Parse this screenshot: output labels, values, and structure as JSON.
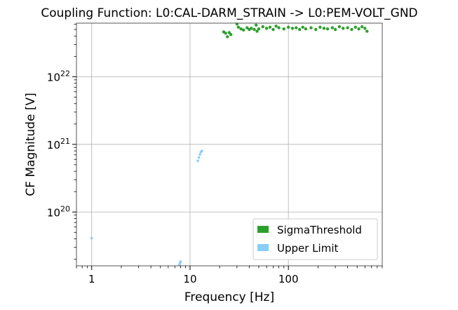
{
  "chart_data": {
    "type": "scatter",
    "title": "Coupling Function: L0:CAL-DARM_STRAIN -> L0:PEM-VOLT_GND",
    "xlabel": "Frequency [Hz]",
    "ylabel": "CF Magnitude [V]",
    "xscale": "log",
    "yscale": "log",
    "xlim": [
      0.7,
      900
    ],
    "ylim": [
      1.6e+19,
      6.2e+22
    ],
    "grid": true,
    "legend_position": "lower-right",
    "xticks": [
      {
        "value": 1,
        "label": "1"
      },
      {
        "value": 10,
        "label": "10"
      },
      {
        "value": 100,
        "label": "100"
      }
    ],
    "yticks": [
      {
        "value": 1e+20,
        "base": "10",
        "exp": "20"
      },
      {
        "value": 1e+21,
        "base": "10",
        "exp": "21"
      },
      {
        "value": 1e+22,
        "base": "10",
        "exp": "22"
      }
    ],
    "series": [
      {
        "name": "SigmaThreshold",
        "color": "#2ca02c",
        "points": [
          [
            22,
            4.6e+22
          ],
          [
            23,
            4.4e+22
          ],
          [
            24,
            3.9e+22
          ],
          [
            25,
            4.5e+22
          ],
          [
            26,
            4.2e+22
          ],
          [
            30,
            6e+22
          ],
          [
            31,
            5.4e+22
          ],
          [
            33,
            5.1e+22
          ],
          [
            35,
            4.9e+22
          ],
          [
            38,
            5.3e+22
          ],
          [
            40,
            5e+22
          ],
          [
            42,
            5.2e+22
          ],
          [
            45,
            5e+22
          ],
          [
            47,
            5.8e+22
          ],
          [
            48,
            4.7e+22
          ],
          [
            50,
            5.1e+22
          ],
          [
            55,
            5.5e+22
          ],
          [
            60,
            5.2e+22
          ],
          [
            65,
            5.4e+22
          ],
          [
            70,
            5e+22
          ],
          [
            75,
            5.6e+22
          ],
          [
            80,
            5.3e+22
          ],
          [
            90,
            5.1e+22
          ],
          [
            100,
            5.4e+22
          ],
          [
            110,
            5.2e+22
          ],
          [
            120,
            5.3e+22
          ],
          [
            130,
            5e+22
          ],
          [
            140,
            5.4e+22
          ],
          [
            150,
            5.1e+22
          ],
          [
            170,
            5.3e+22
          ],
          [
            190,
            5e+22
          ],
          [
            210,
            5.4e+22
          ],
          [
            230,
            5.2e+22
          ],
          [
            250,
            5.1e+22
          ],
          [
            280,
            5.3e+22
          ],
          [
            300,
            5e+22
          ],
          [
            330,
            5.5e+22
          ],
          [
            360,
            5.2e+22
          ],
          [
            400,
            5.3e+22
          ],
          [
            440,
            5e+22
          ],
          [
            480,
            5.4e+22
          ],
          [
            520,
            5.1e+22
          ],
          [
            560,
            5.5e+22
          ],
          [
            600,
            5.2e+22
          ],
          [
            630,
            4.7e+22
          ]
        ]
      },
      {
        "name": "Upper Limit",
        "color": "#87cefa",
        "points": [
          [
            1.0,
            4.1e+19
          ],
          [
            7.8,
            1.65e+19
          ],
          [
            7.9,
            1.75e+19
          ],
          [
            8.0,
            1.85e+19
          ],
          [
            12.0,
            5.7e+20
          ],
          [
            12.3,
            6.4e+20
          ],
          [
            12.6,
            7.1e+20
          ],
          [
            12.9,
            7.7e+20
          ],
          [
            13.2,
            8e+20
          ]
        ]
      }
    ]
  }
}
